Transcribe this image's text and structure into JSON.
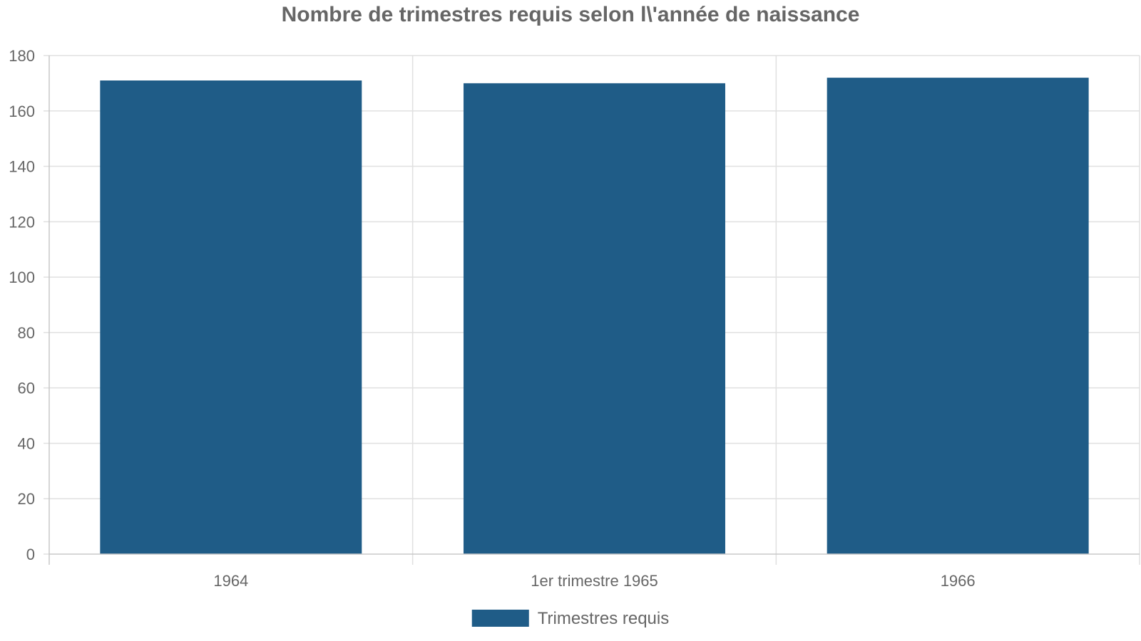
{
  "chart_data": {
    "type": "bar",
    "title": "Nombre de trimestres requis selon l\\'année de naissance",
    "categories": [
      "1964",
      "1er trimestre 1965",
      "1966"
    ],
    "series": [
      {
        "name": "Trimestres requis",
        "values": [
          171,
          170,
          172
        ],
        "color": "#1f5c87"
      }
    ],
    "xlabel": "",
    "ylabel": "",
    "ylim": [
      0,
      180
    ],
    "yticks": [
      0,
      20,
      40,
      60,
      80,
      100,
      120,
      140,
      160,
      180
    ],
    "grid": true,
    "legend_position": "bottom-center"
  }
}
